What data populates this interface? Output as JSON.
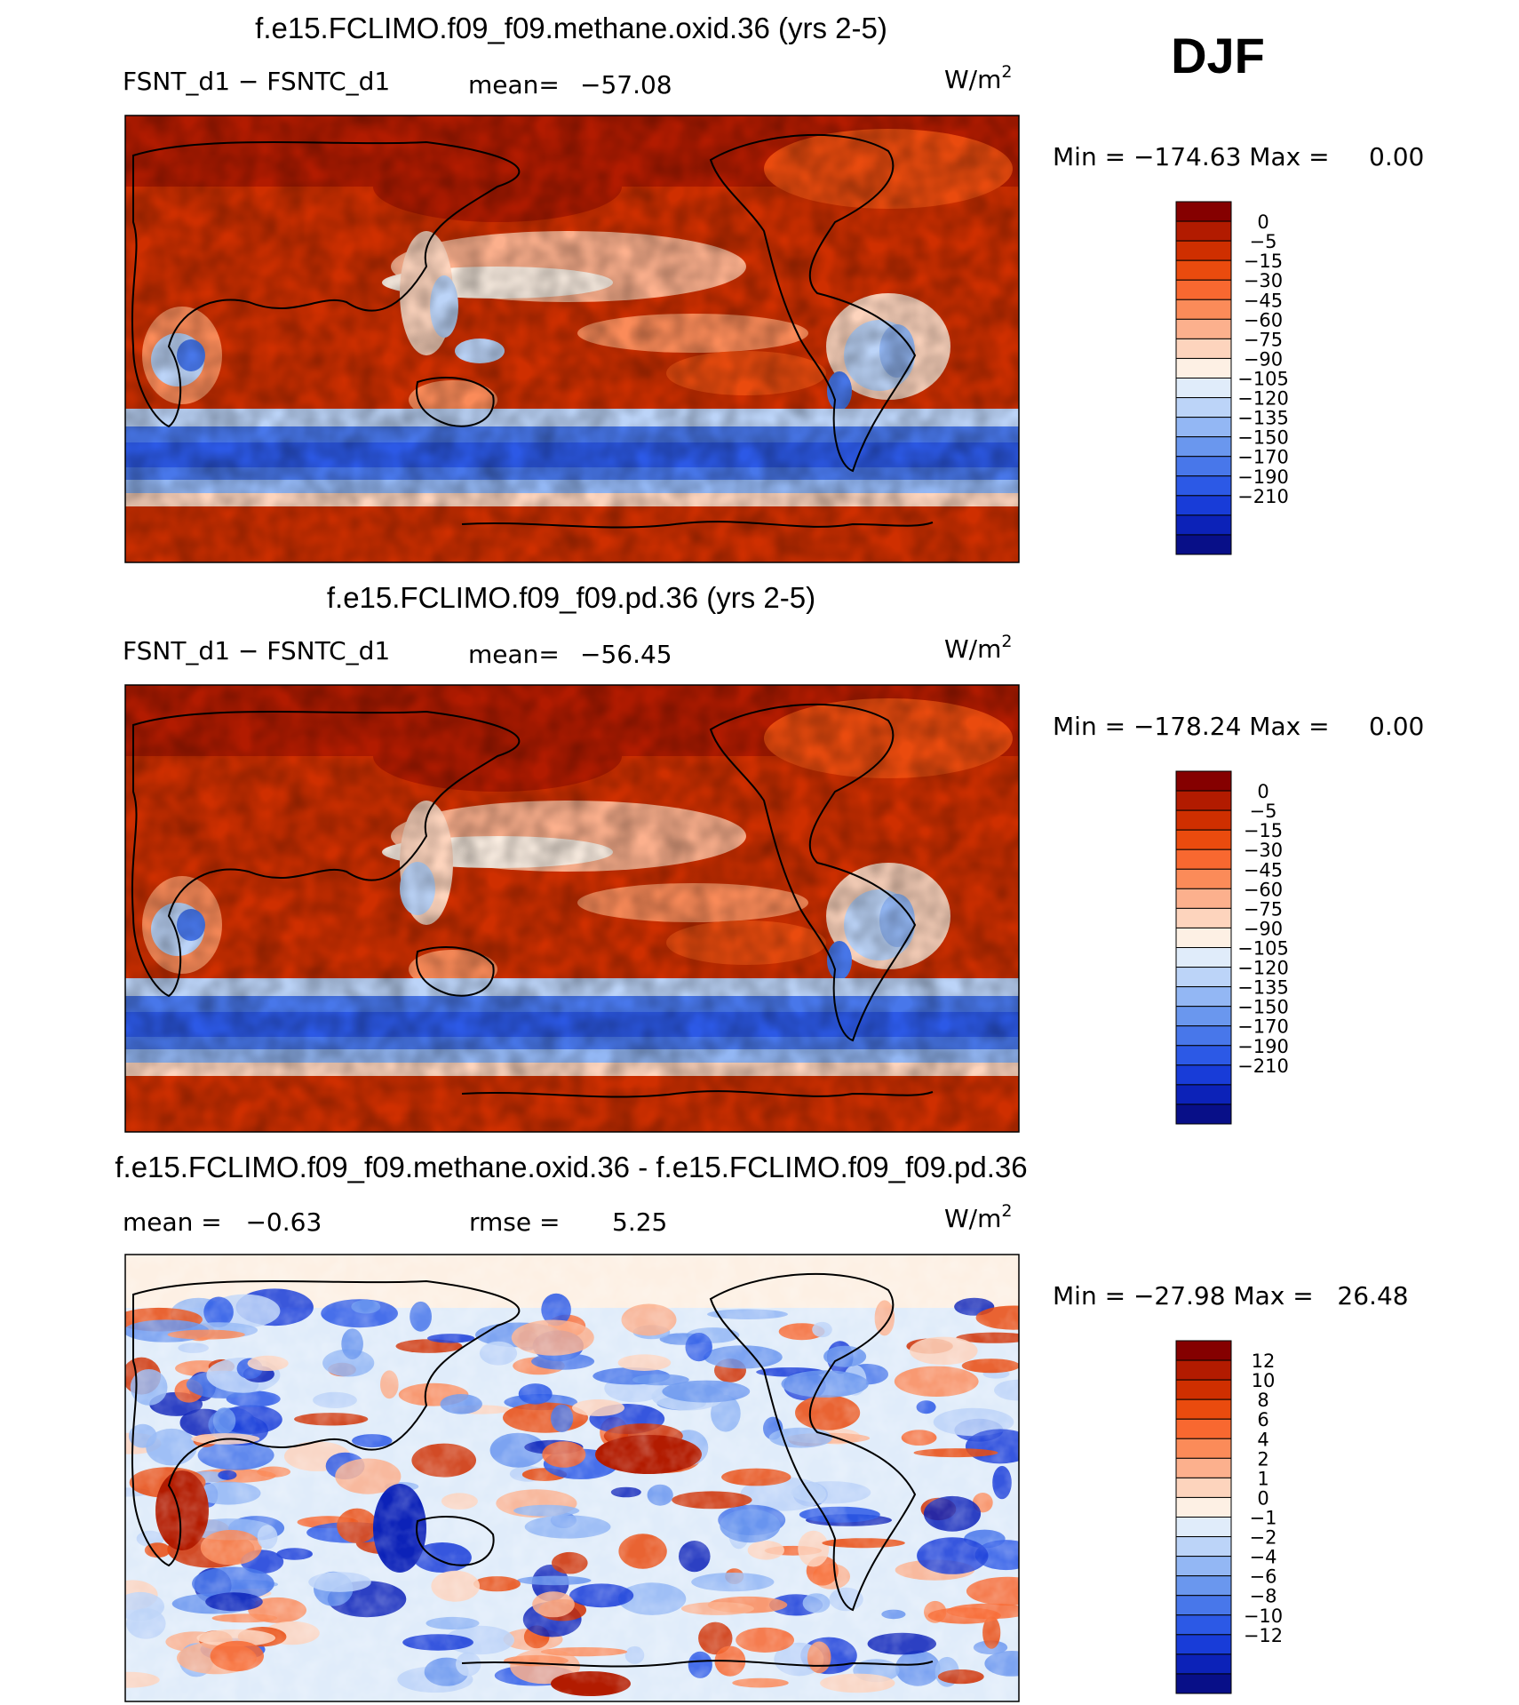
{
  "season": "DJF",
  "colors": {
    "default_scale": [
      "#850000",
      "#b21b00",
      "#cf2f00",
      "#ea4b0e",
      "#f86830",
      "#fb8b59",
      "#fcb08d",
      "#fdd4bd",
      "#fdf0e4",
      "#e0ecfa",
      "#bcd4f8",
      "#93b7f4",
      "#6a97ee",
      "#4877ea",
      "#2c59e6",
      "#183cd8",
      "#0c22b8",
      "#080f88"
    ],
    "diff_scale": [
      "#850000",
      "#b21b00",
      "#cf2f00",
      "#ea4b0e",
      "#f86830",
      "#fb8b59",
      "#fcb08d",
      "#fdd4bd",
      "#fdf0e4",
      "#e0ecfa",
      "#bcd4f8",
      "#93b7f4",
      "#6a97ee",
      "#4877ea",
      "#2c59e6",
      "#183cd8",
      "#0c22b8",
      "#080f88"
    ],
    "map_border": "#000000"
  },
  "chart_data": [
    {
      "type": "heatmap",
      "title": "f.e15.FCLIMO.f09_f09.methane.oxid.36 (yrs 2-5)",
      "left_label": "FSNT_d1 − FSNTC_d1",
      "stat_label": "mean=",
      "stat_value": "−57.08",
      "units": "W/m",
      "units_power": "2",
      "min_max_text": "Min = −174.63 Max =     0.00",
      "min": -174.63,
      "max": 0.0,
      "mean": -57.08,
      "colorbar_levels": [
        "0",
        "−5",
        "−15",
        "−30",
        "−45",
        "−60",
        "−75",
        "−90",
        "−105",
        "−120",
        "−135",
        "−150",
        "−170",
        "−190",
        "−210"
      ]
    },
    {
      "type": "heatmap",
      "title": "f.e15.FCLIMO.f09_f09.pd.36 (yrs 2-5)",
      "left_label": "FSNT_d1 − FSNTC_d1",
      "stat_label": "mean=",
      "stat_value": "−56.45",
      "units": "W/m",
      "units_power": "2",
      "min_max_text": "Min = −178.24 Max =     0.00",
      "min": -178.24,
      "max": 0.0,
      "mean": -56.45,
      "colorbar_levels": [
        "0",
        "−5",
        "−15",
        "−30",
        "−45",
        "−60",
        "−75",
        "−90",
        "−105",
        "−120",
        "−135",
        "−150",
        "−170",
        "−190",
        "−210"
      ]
    },
    {
      "type": "heatmap",
      "title": "f.e15.FCLIMO.f09_f09.methane.oxid.36 - f.e15.FCLIMO.f09_f09.pd.36",
      "left_label": "mean =   −0.63",
      "stat_label": "rmse =",
      "stat_value": "5.25",
      "units": "W/m",
      "units_power": "2",
      "min_max_text": "Min = −27.98 Max =   26.48",
      "min": -27.98,
      "max": 26.48,
      "mean": -0.63,
      "rmse": 5.25,
      "colorbar_levels": [
        "12",
        "10",
        "8",
        "6",
        "4",
        "2",
        "1",
        "0",
        "−1",
        "−2",
        "−4",
        "−6",
        "−8",
        "−10",
        "−12"
      ]
    }
  ]
}
